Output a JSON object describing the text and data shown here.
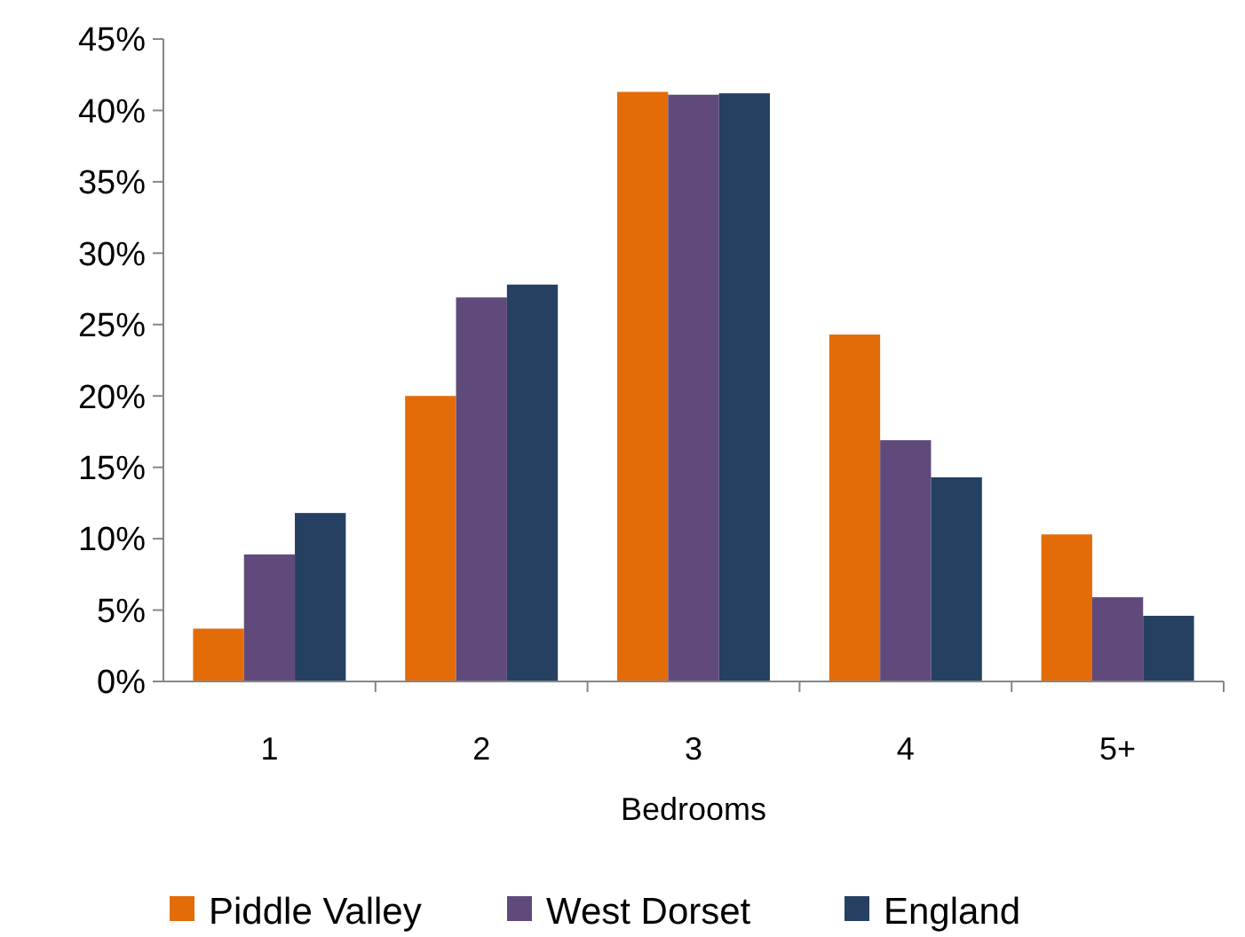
{
  "chart_data": {
    "type": "bar",
    "xlabel": "Bedrooms",
    "categories": [
      "1",
      "2",
      "3",
      "4",
      "5+"
    ],
    "series": [
      {
        "name": "Piddle Valley",
        "color": "#e36c09",
        "values": [
          3.7,
          20.0,
          41.3,
          24.3,
          10.3
        ]
      },
      {
        "name": "West Dorset",
        "color": "#604a7b",
        "values": [
          8.9,
          26.9,
          41.1,
          16.9,
          5.9
        ]
      },
      {
        "name": "England",
        "color": "#254061",
        "values": [
          11.8,
          27.8,
          41.2,
          14.3,
          4.6
        ]
      }
    ],
    "ylim": [
      0,
      45
    ],
    "yticks": [
      {
        "value": 0,
        "label": "0%"
      },
      {
        "value": 5,
        "label": "5%"
      },
      {
        "value": 10,
        "label": "10%"
      },
      {
        "value": 15,
        "label": "15%"
      },
      {
        "value": 20,
        "label": "20%"
      },
      {
        "value": 25,
        "label": "25%"
      },
      {
        "value": 30,
        "label": "30%"
      },
      {
        "value": 35,
        "label": "35%"
      },
      {
        "value": 40,
        "label": "40%"
      },
      {
        "value": 45,
        "label": "45%"
      }
    ],
    "grid": false,
    "legend": "bottom"
  }
}
